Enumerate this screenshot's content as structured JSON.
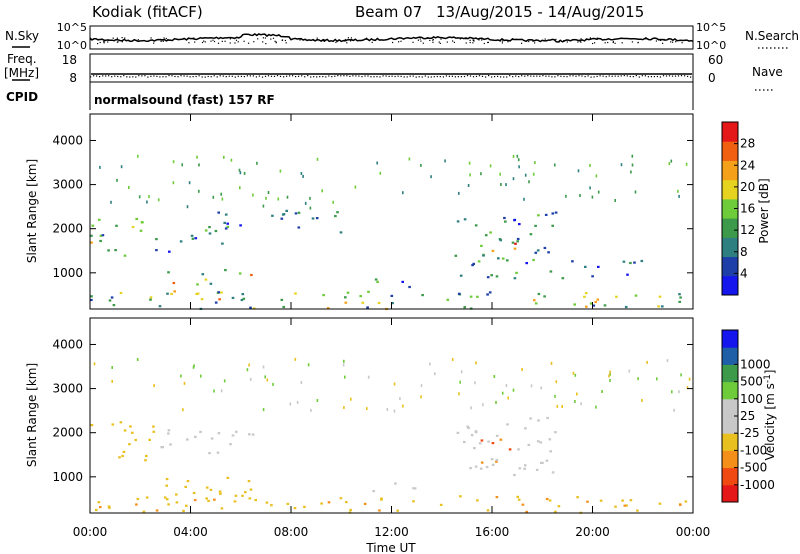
{
  "header": {
    "station": "Kodiak (fitACF)",
    "beam": "Beam 07",
    "date_range": "13/Aug/2015 - 14/Aug/2015"
  },
  "top_panels": {
    "nsky_label": "N.Sky",
    "nsearch_label": "N.Search",
    "noise_ticks": [
      "10^5",
      "10^0"
    ],
    "freq_label": "Freq.",
    "freq_unit": "[MHz]",
    "freq_ticks": [
      "18",
      "8"
    ],
    "nave_label": "Nave",
    "nave_ticks": [
      "60",
      "0"
    ],
    "cpid_label": "CPID",
    "cpid_value": "normalsound (fast) 157 RF"
  },
  "x_axis": {
    "label": "Time UT",
    "ticks": [
      "00:00",
      "04:00",
      "08:00",
      "12:00",
      "16:00",
      "20:00",
      "00:00"
    ]
  },
  "colors": {
    "power": [
      "#1515ee",
      "#1e3fa8",
      "#2e7f80",
      "#3c9a4a",
      "#6ecb3a",
      "#e6d320",
      "#f4a018",
      "#f06010",
      "#e41818"
    ],
    "velocity": [
      "#e41818",
      "#f04a12",
      "#f4901a",
      "#e8c020",
      "#c8c8c8",
      "#c8c8c8",
      "#6ecb3a",
      "#3c9a4a",
      "#1e5fa8",
      "#1515ee"
    ]
  },
  "chart_data": [
    {
      "type": "heatmap",
      "panel": "power",
      "ylabel": "Slant Range [km]",
      "yticks": [
        "1000",
        "2000",
        "3000",
        "4000"
      ],
      "ylim": [
        180,
        4600
      ],
      "xlim_hours": [
        0,
        24
      ],
      "colorbar_label": "Power [dB]",
      "colorbar_ticks": [
        "4",
        "8",
        "12",
        "16",
        "20",
        "24",
        "28"
      ],
      "colorbar_range": [
        0,
        32
      ],
      "scatter_regions": [
        {
          "t": [
            0.0,
            2.5
          ],
          "r": [
            1400,
            2300
          ],
          "value": 14
        },
        {
          "t": [
            2.5,
            5.5
          ],
          "r": [
            1500,
            2000
          ],
          "value": 10
        },
        {
          "t": [
            3.0,
            6.5
          ],
          "r": [
            400,
            1100
          ],
          "value": 18
        },
        {
          "t": [
            0.0,
            24.0
          ],
          "r": [
            200,
            600
          ],
          "value": 14
        },
        {
          "t": [
            4.5,
            6.5
          ],
          "r": [
            1800,
            2400
          ],
          "value": 8
        },
        {
          "t": [
            7.0,
            10.0
          ],
          "r": [
            1900,
            2500
          ],
          "value": 6
        },
        {
          "t": [
            11.0,
            13.5
          ],
          "r": [
            700,
            900
          ],
          "value": 12
        },
        {
          "t": [
            15.5,
            17.0
          ],
          "r": [
            1300,
            1900
          ],
          "value": 22
        },
        {
          "t": [
            14.5,
            18.5
          ],
          "r": [
            900,
            2400
          ],
          "value": 10
        },
        {
          "t": [
            18.5,
            22.0
          ],
          "r": [
            900,
            1300
          ],
          "value": 6
        }
      ]
    },
    {
      "type": "heatmap",
      "panel": "velocity",
      "ylabel": "Slant Range [km]",
      "yticks": [
        "1000",
        "2000",
        "3000",
        "4000"
      ],
      "ylim": [
        180,
        4600
      ],
      "xlim_hours": [
        0,
        24
      ],
      "colorbar_label": "Velocity [m s^-1]",
      "colorbar_ticks": [
        "-1000",
        "-500",
        "-100",
        "-25",
        "25",
        "100",
        "500",
        "1000"
      ],
      "scatter_regions": [
        {
          "t": [
            0.0,
            2.5
          ],
          "r": [
            1400,
            2300
          ],
          "value": -50
        },
        {
          "t": [
            2.5,
            6.5
          ],
          "r": [
            1500,
            2100
          ],
          "value": 10
        },
        {
          "t": [
            3.0,
            6.5
          ],
          "r": [
            400,
            1100
          ],
          "value": -60
        },
        {
          "t": [
            0.0,
            24.0
          ],
          "r": [
            200,
            600
          ],
          "value": -80
        },
        {
          "t": [
            15.5,
            17.0
          ],
          "r": [
            1300,
            1900
          ],
          "value": -400
        },
        {
          "t": [
            14.5,
            18.5
          ],
          "r": [
            1000,
            2400
          ],
          "value": 5
        },
        {
          "t": [
            11.0,
            13.5
          ],
          "r": [
            700,
            900
          ],
          "value": 10
        }
      ]
    }
  ]
}
